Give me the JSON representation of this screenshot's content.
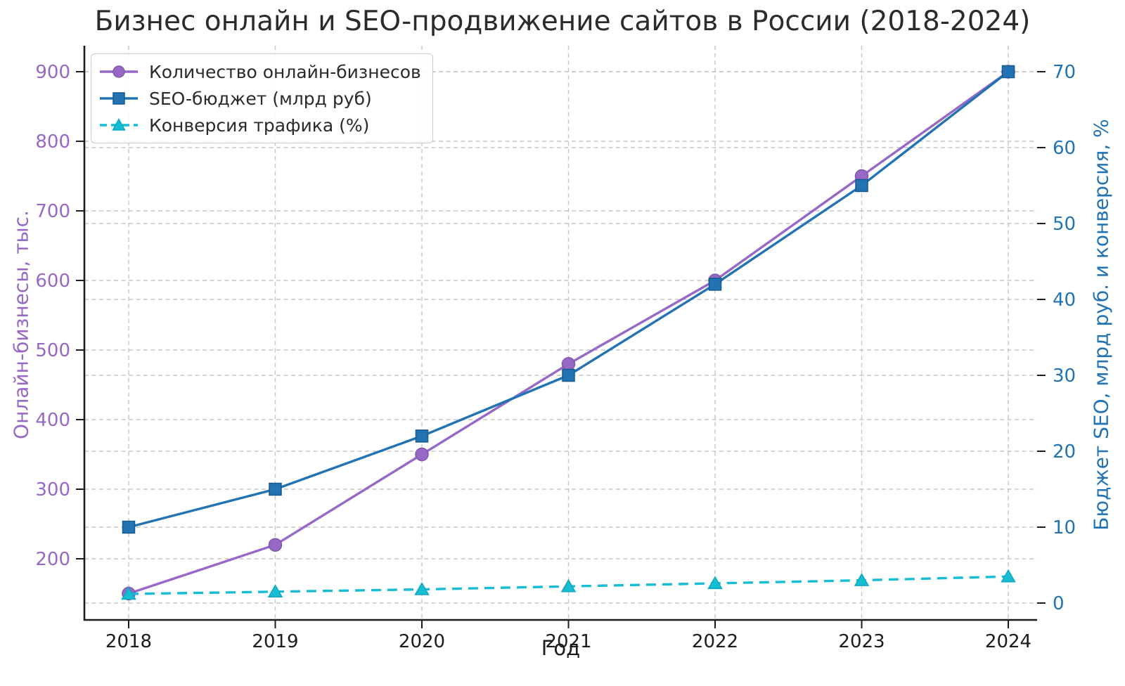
{
  "chart_data": {
    "type": "line",
    "title": "Бизнес онлайн и SEO-продвижение сайтов в России (2018-2024)",
    "xlabel": "Год",
    "ylabel_left": "Онлайн-бизнесы, тыс.",
    "ylabel_right": "Бюджет SEO, млрд руб. и конверсия, %",
    "x": [
      2018,
      2019,
      2020,
      2021,
      2022,
      2023,
      2024
    ],
    "left_ticks": [
      200,
      300,
      400,
      500,
      600,
      700,
      800,
      900
    ],
    "right_ticks": [
      0,
      10,
      20,
      30,
      40,
      50,
      60,
      70
    ],
    "xlim": [
      2017.7,
      2024.2
    ],
    "ylim_left": [
      112.5,
      937.5
    ],
    "ylim_right": [
      -2.25,
      73.45
    ],
    "grid": true,
    "legend_position": "upper left",
    "series": [
      {
        "name": "Количество онлайн-бизнесов",
        "axis": "left",
        "marker": "circle",
        "line_style": "solid",
        "color": "#9768c6",
        "marker_edge": "#7e57ab",
        "values": [
          150,
          220,
          350,
          480,
          600,
          750,
          900
        ]
      },
      {
        "name": "SEO-бюджет (млрд руб)",
        "axis": "right",
        "marker": "square",
        "line_style": "solid",
        "color": "#2173b4",
        "marker_edge": "#175a8e",
        "values": [
          10,
          15,
          22,
          30,
          42,
          55,
          70
        ]
      },
      {
        "name": "Конверсия трафика (%)",
        "axis": "right",
        "marker": "triangle",
        "line_style": "dashed",
        "color": "#16bdd3",
        "marker_edge": "#0fa8c0",
        "values": [
          1.2,
          1.5,
          1.8,
          2.2,
          2.6,
          3.0,
          3.5
        ]
      }
    ]
  },
  "style": {
    "background": "#ffffff",
    "title_color": "#2b2b2b",
    "axis_color": "#1c1c1c",
    "tick_label_color": "#1c1c1c",
    "grid_color": "#c6c6c6",
    "left_axis_label_color": "#9768c6",
    "right_axis_label_color": "#2173b4",
    "legend_text_color": "#2a2a2a",
    "legend_border_color": "#cccccc"
  }
}
